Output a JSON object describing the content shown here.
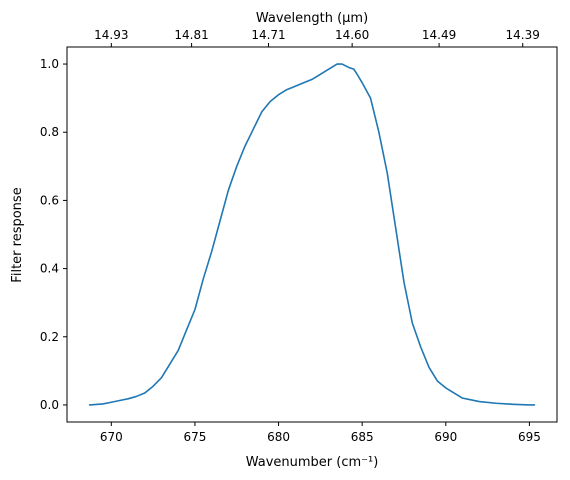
{
  "chart_data": {
    "type": "line",
    "xlabel": "Wavenumber (cm⁻¹)",
    "ylabel": "Filter response",
    "top_xlabel": "Wavelength (μm)",
    "xlim": [
      667.35,
      696.65
    ],
    "ylim": [
      -0.05,
      1.05
    ],
    "x_ticks": [
      670,
      675,
      680,
      685,
      690,
      695
    ],
    "y_ticks": [
      0.0,
      0.2,
      0.4,
      0.6,
      0.8,
      1.0
    ],
    "y_tick_labels": [
      "0.0",
      "0.2",
      "0.4",
      "0.6",
      "0.8",
      "1.0"
    ],
    "top_ticks": [
      {
        "wavenumber": 670.0,
        "label": "14.93"
      },
      {
        "wavenumber": 674.8,
        "label": "14.81"
      },
      {
        "wavenumber": 679.4,
        "label": "14.71"
      },
      {
        "wavenumber": 684.4,
        "label": "14.60"
      },
      {
        "wavenumber": 689.6,
        "label": "14.49"
      },
      {
        "wavenumber": 694.6,
        "label": "14.39"
      }
    ],
    "grid": false,
    "legend": "none",
    "series": [
      {
        "color": "#1f77b4",
        "x": [
          668.7,
          669.5,
          670.0,
          670.5,
          671.0,
          671.5,
          672.0,
          672.5,
          673.0,
          673.5,
          674.0,
          674.5,
          675.0,
          675.5,
          676.0,
          676.5,
          677.0,
          677.5,
          678.0,
          678.5,
          679.0,
          679.5,
          680.0,
          680.5,
          681.0,
          681.5,
          682.0,
          682.5,
          683.0,
          683.5,
          683.8,
          684.2,
          684.5,
          684.7,
          685.0,
          685.5,
          686.0,
          686.5,
          687.0,
          687.5,
          688.0,
          688.5,
          689.0,
          689.5,
          690.0,
          690.5,
          691.0,
          691.5,
          692.0,
          693.0,
          694.0,
          695.0,
          695.3
        ],
        "y": [
          0.0,
          0.003,
          0.008,
          0.013,
          0.018,
          0.025,
          0.035,
          0.055,
          0.08,
          0.12,
          0.16,
          0.22,
          0.28,
          0.37,
          0.45,
          0.54,
          0.63,
          0.7,
          0.76,
          0.81,
          0.86,
          0.89,
          0.91,
          0.925,
          0.935,
          0.945,
          0.955,
          0.97,
          0.985,
          1.0,
          1.0,
          0.99,
          0.985,
          0.97,
          0.945,
          0.9,
          0.8,
          0.68,
          0.52,
          0.36,
          0.24,
          0.17,
          0.11,
          0.07,
          0.05,
          0.035,
          0.02,
          0.015,
          0.01,
          0.005,
          0.002,
          0.0,
          0.0
        ]
      }
    ]
  }
}
